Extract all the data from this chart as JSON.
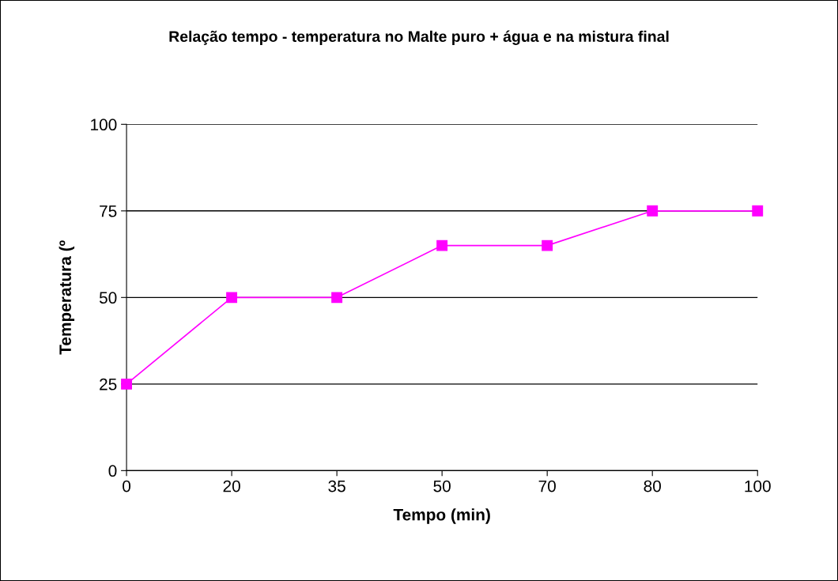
{
  "chart_data": {
    "type": "line",
    "title": "Relação tempo - temperatura no Malte puro + água e na mistura final",
    "xlabel": "Tempo (min)",
    "ylabel": "Temperatura (º",
    "categories": [
      "0",
      "20",
      "35",
      "50",
      "70",
      "80",
      "100"
    ],
    "series": [
      {
        "color": "#ff00ff",
        "values": [
          25,
          50,
          50,
          65,
          65,
          75,
          75
        ]
      }
    ],
    "ylim": [
      0,
      100
    ],
    "yticks": [
      0,
      25,
      50,
      75,
      100
    ],
    "grid": "y",
    "marker": "square",
    "line_style": "solid",
    "legend": false
  }
}
